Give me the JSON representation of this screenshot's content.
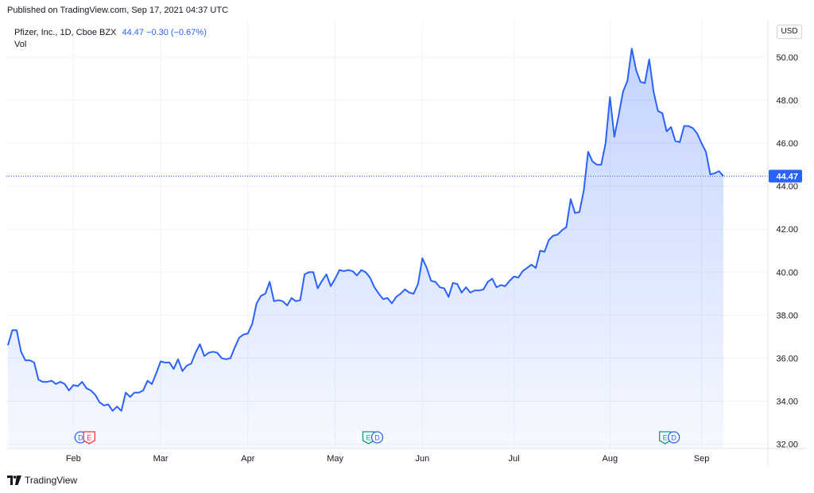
{
  "header": {
    "published": "Published on TradingView.com, Sep 17, 2021 04:37 UTC"
  },
  "legend": {
    "symbol": "Pfizer, Inc., 1D, Cboe BZX",
    "value": "44.47 −0.30 (−0.67%)",
    "vol": "Vol"
  },
  "currency_button": "USD",
  "footer": {
    "brand": "TradingView"
  },
  "colors": {
    "line": "#2962ff",
    "fill": "#2962ff",
    "grid": "#f0f3fa",
    "axis_text": "#131722",
    "price_tag": "#2962ff",
    "dividend": "#2962ff",
    "earnings_red": "#f23645",
    "earnings_green": "#089981"
  },
  "chart_data": {
    "type": "area",
    "title": "",
    "xlabel": "",
    "ylabel": "",
    "x_tick_labels": [
      "Feb",
      "Mar",
      "Apr",
      "May",
      "Jun",
      "Jul",
      "Aug",
      "Sep"
    ],
    "y_tick_labels": [
      "32.00",
      "34.00",
      "36.00",
      "38.00",
      "40.00",
      "42.00",
      "44.00",
      "46.00",
      "48.00",
      "50.00"
    ],
    "ylim": [
      31.8,
      51.7
    ],
    "last_price_label": "44.47",
    "grid": true,
    "series": [
      {
        "values": [
          36.6,
          37.3,
          37.3,
          36.3,
          35.9,
          35.9,
          35.8,
          35.0,
          34.9,
          34.9,
          34.95,
          34.8,
          34.9,
          34.8,
          34.5,
          34.75,
          34.7,
          34.9,
          34.6,
          34.5,
          34.3,
          33.95,
          33.8,
          33.85,
          33.55,
          33.75,
          33.55,
          34.4,
          34.2,
          34.4,
          34.4,
          34.5,
          34.95,
          34.8,
          35.3,
          35.85,
          35.8,
          35.8,
          35.5,
          35.95,
          35.4,
          35.65,
          35.75,
          36.25,
          36.65,
          36.1,
          36.25,
          36.3,
          36.25,
          36.0,
          35.95,
          36.0,
          36.5,
          36.95,
          37.1,
          37.15,
          37.6,
          38.55,
          38.9,
          39.0,
          39.55,
          38.65,
          38.7,
          38.65,
          38.45,
          38.8,
          38.65,
          38.7,
          39.9,
          40.0,
          40.0,
          39.25,
          39.6,
          39.9,
          39.35,
          39.7,
          40.1,
          40.05,
          40.1,
          40.05,
          39.85,
          40.1,
          40.0,
          39.75,
          39.3,
          39.0,
          38.75,
          38.8,
          38.55,
          38.85,
          39.0,
          39.2,
          39.05,
          39.0,
          39.45,
          40.65,
          40.2,
          39.6,
          39.55,
          39.3,
          39.25,
          38.85,
          39.5,
          39.45,
          39.05,
          39.3,
          39.05,
          39.15,
          39.15,
          39.2,
          39.55,
          39.7,
          39.3,
          39.4,
          39.35,
          39.6,
          39.8,
          39.75,
          40.05,
          40.2,
          40.35,
          40.2,
          41.0,
          40.95,
          41.5,
          41.7,
          41.75,
          41.95,
          42.1,
          43.4,
          42.75,
          42.8,
          43.8,
          45.6,
          45.15,
          45.0,
          45.0,
          46.0,
          48.15,
          46.3,
          47.3,
          48.4,
          48.9,
          50.4,
          49.4,
          48.85,
          48.8,
          49.9,
          48.4,
          47.5,
          47.4,
          46.55,
          46.75,
          46.1,
          46.05,
          46.8,
          46.8,
          46.7,
          46.45,
          46.0,
          45.6,
          44.55,
          44.6,
          44.7,
          44.47
        ]
      }
    ],
    "event_markers": [
      {
        "label": "D",
        "kind": "dividend"
      },
      {
        "label": "E",
        "kind": "earnings"
      },
      {
        "label": "E",
        "kind": "earnings"
      },
      {
        "label": "D",
        "kind": "dividend"
      },
      {
        "label": "E",
        "kind": "earnings"
      },
      {
        "label": "D",
        "kind": "dividend"
      }
    ]
  }
}
